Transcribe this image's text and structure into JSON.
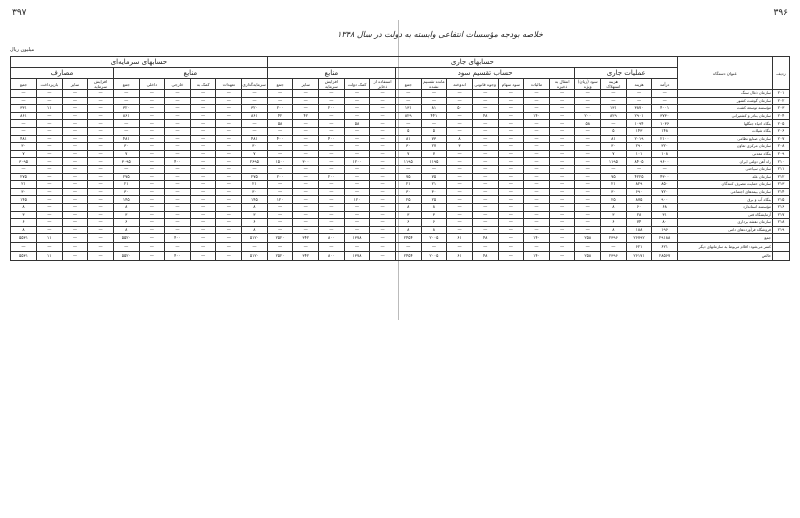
{
  "page_left": "۳۹۷",
  "page_right": "۳۹۶",
  "title": "خلاصه بودجه مؤسسات انتفاعی وابسته به دولت در سال ۱۳۴۸",
  "note": "میلیون ریال",
  "groups": {
    "current": "حسابهای جاری",
    "capital": "حسابهای سرمایه‌ای",
    "operations": "عملیات جاری",
    "profit": "حساب تقسیم سود",
    "sources1": "منابع",
    "uses1": "مصارف",
    "sources2": "منابع",
    "uses2": "مصارف"
  },
  "head_row": "ردیف",
  "head_name": "عنوان دستگاه",
  "columns": [
    "درآمد",
    "هزینه",
    "هزینه استهلاک",
    "سود (زیان) ویژه",
    "انتقال به ذخیره",
    "مالیات",
    "سود سهام",
    "وجوه قانونی",
    "اندوخته",
    "مانده تقسیم نشده",
    "جمع",
    "استفاده از ذخایر",
    "کمک دولت",
    "افزایش سرمایه",
    "سایر",
    "جمع",
    "سرمایه‌گذاری",
    "تعهدات",
    "کمک به",
    "خارجی",
    "داخلی",
    "جمع",
    "افزایش سرمایه",
    "سایر",
    "بازپرداخت",
    "جمع"
  ],
  "rows": [
    {
      "no": "۲۰۱",
      "name": "سازمان ذغال سنگ",
      "cells": [
        "—",
        "—",
        "—",
        "—",
        "—",
        "—",
        "—",
        "—",
        "—",
        "—",
        "—",
        "—",
        "—",
        "—",
        "—",
        "—",
        "—",
        "—",
        "—",
        "—",
        "—",
        "—",
        "—",
        "—",
        "—",
        "—"
      ]
    },
    {
      "no": "۲۰۲",
      "name": "سازمان گوشت کشور",
      "cells": [
        "—",
        "—",
        "—",
        "—",
        "—",
        "—",
        "—",
        "—",
        "—",
        "—",
        "—",
        "—",
        "—",
        "—",
        "—",
        "—",
        "—",
        "—",
        "—",
        "—",
        "—",
        "—",
        "—",
        "—",
        "—",
        "—"
      ]
    },
    {
      "no": "۲۰۳",
      "name": "مؤسسه توسعه کشت",
      "cells": [
        "۴۰۰۱",
        "۳۸۷۰",
        "۱۳۱",
        "—",
        "—",
        "—",
        "—",
        "—",
        "۵۰",
        "۸۱",
        "۱۳۱",
        "—",
        "—",
        "۲۰۰",
        "—",
        "۲۰۰",
        "۳۲۰",
        "—",
        "—",
        "—",
        "—",
        "۳۲۰",
        "—",
        "—",
        "۱۱",
        "۳۳۱"
      ]
    },
    {
      "no": "۲۰۴",
      "name": "سازمان بنادر و کشتیرانی",
      "cells": [
        "۳۷۳۰",
        "۲۹۰۱",
        "۸۲۹",
        "۲۰۰",
        "—",
        "۱۴۰",
        "—",
        "۴۸",
        "—",
        "۴۴۱",
        "۸۲۹",
        "—",
        "—",
        "—",
        "۴۲",
        "۴۲",
        "۸۶۱",
        "—",
        "—",
        "—",
        "—",
        "۸۶۱",
        "—",
        "—",
        "—",
        "۸۶۱"
      ]
    },
    {
      "no": "۲۰۵",
      "name": "بنگاه احیاء جنگلها",
      "cells": [
        "۱۰۳۶",
        "۱۰۹۴",
        "—",
        "۵۸",
        "—",
        "—",
        "—",
        "—",
        "—",
        "—",
        "—",
        "—",
        "۵۸",
        "—",
        "—",
        "۵۸",
        "—",
        "—",
        "—",
        "—",
        "—",
        "—",
        "—",
        "—",
        "—",
        "—"
      ]
    },
    {
      "no": "۲۰۶",
      "name": "بنگاه شیلات",
      "cells": [
        "۱۴۸",
        "۱۴۳",
        "۵",
        "—",
        "—",
        "—",
        "—",
        "—",
        "—",
        "۵",
        "۵",
        "—",
        "—",
        "—",
        "—",
        "—",
        "—",
        "—",
        "—",
        "—",
        "—",
        "—",
        "—",
        "—",
        "—",
        "—"
      ]
    },
    {
      "no": "۲۰۷",
      "name": "سازمان صنایع نظامی",
      "cells": [
        "۲۱۰۰",
        "۲۰۱۹",
        "۸۱",
        "—",
        "—",
        "—",
        "—",
        "—",
        "۸",
        "۷۳",
        "۸۱",
        "—",
        "—",
        "۴۰۰",
        "—",
        "۴۰۰",
        "۴۸۱",
        "—",
        "—",
        "—",
        "—",
        "۴۸۱",
        "—",
        "—",
        "—",
        "۴۸۱"
      ]
    },
    {
      "no": "۲۰۸",
      "name": "سازمان مرکزی تعاون",
      "cells": [
        "۳۲۰",
        "۲۹۰",
        "۳۰",
        "—",
        "—",
        "—",
        "—",
        "—",
        "۳",
        "۲۷",
        "۳۰",
        "—",
        "—",
        "—",
        "—",
        "—",
        "۳۰",
        "—",
        "—",
        "—",
        "—",
        "۳۰",
        "—",
        "—",
        "—",
        "۳۰"
      ]
    },
    {
      "no": "۲۰۹",
      "name": "بنگاه معدنی",
      "cells": [
        "۱۰۸",
        "۱۰۱",
        "۷",
        "—",
        "—",
        "—",
        "—",
        "—",
        "—",
        "۷",
        "۷",
        "—",
        "—",
        "—",
        "—",
        "—",
        "۷",
        "—",
        "—",
        "—",
        "—",
        "۷",
        "—",
        "—",
        "—",
        "۷"
      ]
    },
    {
      "no": "۲۱۰",
      "name": "راه آهن دولتی ایران",
      "cells": [
        "۹۶۰۰",
        "۸۴۰۵",
        "۱۱۹۵",
        "—",
        "—",
        "—",
        "—",
        "—",
        "—",
        "۱۱۹۵",
        "۱۱۹۵",
        "—",
        "۱۲۰۰",
        "—",
        "۳۰۰",
        "۱۵۰۰",
        "۲۶۹۵",
        "—",
        "—",
        "۴۰۰",
        "—",
        "۳۰۹۵",
        "—",
        "—",
        "—",
        "۳۰۹۵"
      ]
    },
    {
      "no": "۲۱۱",
      "name": "سازمان سیاحتی",
      "cells": [
        "—",
        "—",
        "—",
        "—",
        "—",
        "—",
        "—",
        "—",
        "—",
        "—",
        "—",
        "—",
        "—",
        "—",
        "—",
        "—",
        "—",
        "—",
        "—",
        "—",
        "—",
        "—",
        "—",
        "—",
        "—",
        "—"
      ]
    },
    {
      "no": "۲۱۲",
      "name": "سازمان غله",
      "cells": [
        "۴۳۰۰",
        "۴۲۲۵",
        "۷۵",
        "—",
        "—",
        "—",
        "—",
        "—",
        "—",
        "۷۵",
        "۷۵",
        "—",
        "—",
        "۲۰۰",
        "—",
        "۲۰۰",
        "۲۷۵",
        "—",
        "—",
        "—",
        "—",
        "۲۷۵",
        "—",
        "—",
        "—",
        "۲۷۵"
      ]
    },
    {
      "no": "۲۱۳",
      "name": "سازمان حمایت مصرف کنندگان",
      "cells": [
        "۸۵۰",
        "۸۲۹",
        "۲۱",
        "—",
        "—",
        "—",
        "—",
        "—",
        "—",
        "۲۱",
        "۲۱",
        "—",
        "—",
        "—",
        "—",
        "—",
        "۲۱",
        "—",
        "—",
        "—",
        "—",
        "۲۱",
        "—",
        "—",
        "—",
        "۲۱"
      ]
    },
    {
      "no": "۲۱۴",
      "name": "سازمان بیمه‌های اجتماعی",
      "cells": [
        "۷۲۰",
        "۶۹۰",
        "۳۰",
        "—",
        "—",
        "—",
        "—",
        "—",
        "—",
        "۳۰",
        "۳۰",
        "—",
        "—",
        "—",
        "—",
        "—",
        "۳۰",
        "—",
        "—",
        "—",
        "—",
        "۳۰",
        "—",
        "—",
        "—",
        "۳۰"
      ]
    },
    {
      "no": "۲۱۵",
      "name": "بنگاه آب و برق",
      "cells": [
        "۹۰۰",
        "۸۷۵",
        "۲۵",
        "—",
        "—",
        "—",
        "—",
        "—",
        "—",
        "۲۵",
        "۲۵",
        "—",
        "۱۲۰",
        "—",
        "—",
        "۱۲۰",
        "۱۴۵",
        "—",
        "—",
        "—",
        "—",
        "۱۴۵",
        "—",
        "—",
        "—",
        "۱۴۵"
      ]
    },
    {
      "no": "۲۱۶",
      "name": "مؤسسه استاندارد",
      "cells": [
        "۶۸",
        "۶۰",
        "۸",
        "—",
        "—",
        "—",
        "—",
        "—",
        "—",
        "۸",
        "۸",
        "—",
        "—",
        "—",
        "—",
        "—",
        "۸",
        "—",
        "—",
        "—",
        "—",
        "۸",
        "—",
        "—",
        "—",
        "۸"
      ]
    },
    {
      "no": "۲۱۷",
      "name": "آزمایشگاه فنی",
      "cells": [
        "۳۱",
        "۲۸",
        "۳",
        "—",
        "—",
        "—",
        "—",
        "—",
        "—",
        "۳",
        "۳",
        "—",
        "—",
        "—",
        "—",
        "—",
        "۳",
        "—",
        "—",
        "—",
        "—",
        "۳",
        "—",
        "—",
        "—",
        "۳"
      ]
    },
    {
      "no": "۲۱۸",
      "name": "سازمان نقشه برداری",
      "cells": [
        "۸۰",
        "۷۴",
        "۶",
        "—",
        "—",
        "—",
        "—",
        "—",
        "—",
        "۶",
        "۶",
        "—",
        "—",
        "—",
        "—",
        "—",
        "۶",
        "—",
        "—",
        "—",
        "—",
        "۶",
        "—",
        "—",
        "—",
        "۶"
      ]
    },
    {
      "no": "۲۱۹",
      "name": "فروشگاه فرآورده‌های دامی",
      "cells": [
        "۱۹۶",
        "۱۸۸",
        "۸",
        "—",
        "—",
        "—",
        "—",
        "—",
        "—",
        "۸",
        "۸",
        "—",
        "—",
        "—",
        "—",
        "—",
        "۸",
        "—",
        "—",
        "—",
        "—",
        "۸",
        "—",
        "—",
        "—",
        "۸"
      ]
    }
  ],
  "totals": [
    {
      "no": "",
      "name": "جمع",
      "cells": [
        "۲۹۱۸۸",
        "۲۶۷۹۲",
        "۲۳۹۶",
        "۲۵۸",
        "—",
        "۱۴۰",
        "—",
        "۴۸",
        "۶۱",
        "۲۰۰۵",
        "۲۴۵۴",
        "—",
        "۱۳۷۸",
        "۸۰۰",
        "۳۴۲",
        "۲۵۲۰",
        "۵۱۲۰",
        "—",
        "—",
        "۴۰۰",
        "—",
        "۵۵۲۰",
        "—",
        "—",
        "۱۱",
        "۵۵۳۱"
      ]
    },
    {
      "no": "",
      "name": "کسر می‌شود: اقلام مربوط به سازمانهای دیگر",
      "cells": [
        "۶۲۱",
        "۶۲۱",
        "—",
        "—",
        "—",
        "—",
        "—",
        "—",
        "—",
        "—",
        "—",
        "—",
        "—",
        "—",
        "—",
        "—",
        "—",
        "—",
        "—",
        "—",
        "—",
        "—",
        "—",
        "—",
        "—",
        "—"
      ]
    },
    {
      "no": "",
      "name": "خالص",
      "cells": [
        "۲۸۵۶۷",
        "۲۶۱۷۱",
        "۲۳۹۶",
        "۲۵۸",
        "—",
        "۱۴۰",
        "—",
        "۴۸",
        "۶۱",
        "۲۰۰۵",
        "۲۴۵۴",
        "—",
        "۱۳۷۸",
        "۸۰۰",
        "۳۴۲",
        "۲۵۲۰",
        "۵۱۲۰",
        "—",
        "—",
        "۴۰۰",
        "—",
        "۵۵۲۰",
        "—",
        "—",
        "۱۱",
        "۵۵۳۱"
      ]
    }
  ]
}
